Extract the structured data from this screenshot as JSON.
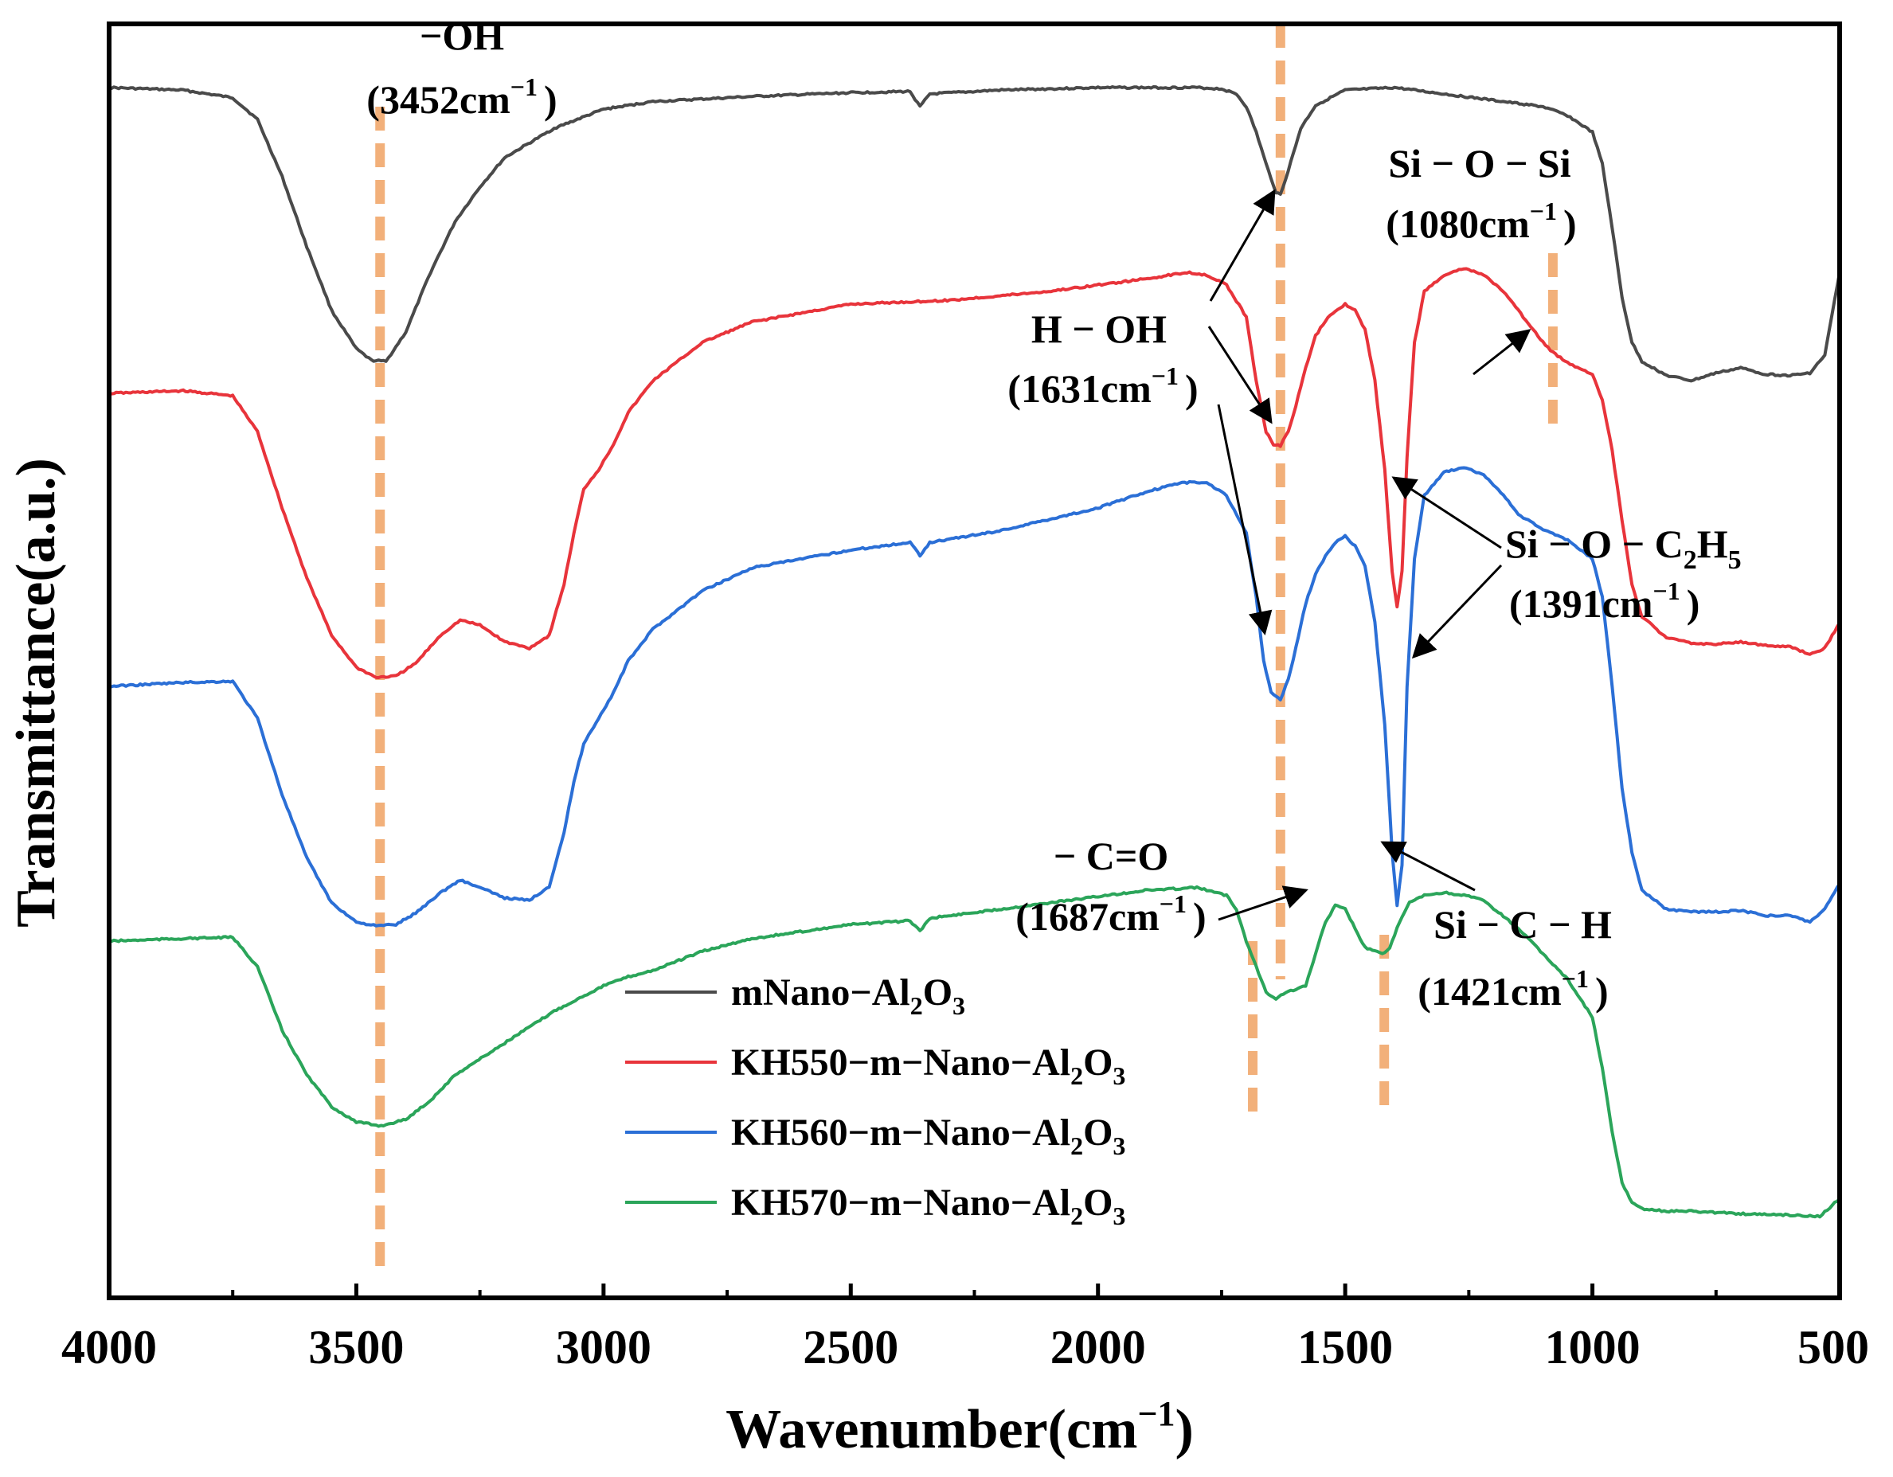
{
  "chart_data": {
    "type": "line",
    "xlabel": "Wavenumber(cm",
    "xlabel_sup": "−1",
    "xlabel_close": ")",
    "ylabel": "Transmittance(a.u.)",
    "xlim": [
      4000,
      500
    ],
    "x_reversed": true,
    "xticks": [
      4000,
      3500,
      3000,
      2500,
      2000,
      1500,
      1000,
      500
    ],
    "xtick_labels": [
      "4000",
      "3500",
      "3000",
      "2500",
      "2000",
      "1500",
      "1000",
      "500"
    ],
    "ylim": [
      0,
      100
    ],
    "grid": false,
    "legend_position": "lower-left",
    "series": [
      {
        "name": "mNano−Al2O3",
        "legend": {
          "main": "mNano−Al",
          "sub1": "2",
          "mid": "O",
          "sub2": "3"
        },
        "color": "#4a4a4a",
        "points": [
          [
            4000,
            95
          ],
          [
            3850,
            94.8
          ],
          [
            3750,
            94.2
          ],
          [
            3700,
            92.5
          ],
          [
            3650,
            88
          ],
          [
            3600,
            82.5
          ],
          [
            3550,
            77.5
          ],
          [
            3500,
            74.5
          ],
          [
            3470,
            73.6
          ],
          [
            3440,
            73.5
          ],
          [
            3400,
            75.8
          ],
          [
            3350,
            80.5
          ],
          [
            3300,
            84.5
          ],
          [
            3250,
            87.2
          ],
          [
            3200,
            89.5
          ],
          [
            3100,
            91.8
          ],
          [
            3000,
            93.3
          ],
          [
            2900,
            93.9
          ],
          [
            2700,
            94.3
          ],
          [
            2500,
            94.6
          ],
          [
            2380,
            94.7
          ],
          [
            2360,
            93.5
          ],
          [
            2340,
            94.5
          ],
          [
            2200,
            94.8
          ],
          [
            2000,
            95
          ],
          [
            1800,
            95
          ],
          [
            1750,
            94.9
          ],
          [
            1720,
            94.5
          ],
          [
            1700,
            93.5
          ],
          [
            1680,
            91.5
          ],
          [
            1660,
            89
          ],
          [
            1640,
            86.8
          ],
          [
            1631,
            86.6
          ],
          [
            1615,
            88.5
          ],
          [
            1590,
            91.8
          ],
          [
            1560,
            93.6
          ],
          [
            1500,
            94.8
          ],
          [
            1400,
            95
          ],
          [
            1300,
            94.5
          ],
          [
            1200,
            94
          ],
          [
            1100,
            93.5
          ],
          [
            1050,
            92.8
          ],
          [
            1000,
            91.5
          ],
          [
            980,
            89
          ],
          [
            960,
            84
          ],
          [
            940,
            78.5
          ],
          [
            920,
            75
          ],
          [
            900,
            73.5
          ],
          [
            850,
            72.4
          ],
          [
            800,
            72
          ],
          [
            750,
            72.6
          ],
          [
            700,
            73
          ],
          [
            650,
            72.5
          ],
          [
            600,
            72.4
          ],
          [
            560,
            72.6
          ],
          [
            530,
            74
          ],
          [
            500,
            80.5
          ]
        ]
      },
      {
        "name": "KH550−m−Nano−Al2O3",
        "legend": {
          "main": "KH550−m−Nano−Al",
          "sub1": "2",
          "mid": "O",
          "sub2": "3"
        },
        "color": "#e8343b",
        "points": [
          [
            4000,
            71
          ],
          [
            3850,
            71.2
          ],
          [
            3750,
            70.8
          ],
          [
            3700,
            68
          ],
          [
            3650,
            62
          ],
          [
            3600,
            56.5
          ],
          [
            3550,
            52
          ],
          [
            3500,
            49.5
          ],
          [
            3460,
            48.7
          ],
          [
            3420,
            48.8
          ],
          [
            3380,
            49.8
          ],
          [
            3330,
            52
          ],
          [
            3290,
            53.2
          ],
          [
            3250,
            52.8
          ],
          [
            3200,
            51.5
          ],
          [
            3150,
            51
          ],
          [
            3110,
            52
          ],
          [
            3080,
            56
          ],
          [
            3060,
            60
          ],
          [
            3040,
            63.5
          ],
          [
            3010,
            65
          ],
          [
            2980,
            67
          ],
          [
            2950,
            69.5
          ],
          [
            2900,
            72
          ],
          [
            2800,
            75
          ],
          [
            2700,
            76.6
          ],
          [
            2500,
            78
          ],
          [
            2300,
            78.3
          ],
          [
            2100,
            79
          ],
          [
            1900,
            80
          ],
          [
            1820,
            80.5
          ],
          [
            1780,
            80.3
          ],
          [
            1740,
            79.5
          ],
          [
            1700,
            77
          ],
          [
            1680,
            72
          ],
          [
            1660,
            68
          ],
          [
            1645,
            67
          ],
          [
            1631,
            66.9
          ],
          [
            1615,
            68
          ],
          [
            1600,
            70
          ],
          [
            1580,
            73
          ],
          [
            1560,
            75.5
          ],
          [
            1540,
            76.7
          ],
          [
            1520,
            77.5
          ],
          [
            1500,
            78
          ],
          [
            1480,
            77.5
          ],
          [
            1460,
            76
          ],
          [
            1440,
            72
          ],
          [
            1420,
            65
          ],
          [
            1405,
            57
          ],
          [
            1395,
            54.2
          ],
          [
            1385,
            57
          ],
          [
            1375,
            66
          ],
          [
            1360,
            75
          ],
          [
            1340,
            79
          ],
          [
            1300,
            80.3
          ],
          [
            1260,
            80.8
          ],
          [
            1220,
            80.3
          ],
          [
            1180,
            79
          ],
          [
            1150,
            77.5
          ],
          [
            1120,
            76
          ],
          [
            1100,
            75
          ],
          [
            1080,
            74.2
          ],
          [
            1050,
            73.4
          ],
          [
            1000,
            72.5
          ],
          [
            980,
            70.5
          ],
          [
            960,
            66.5
          ],
          [
            940,
            61
          ],
          [
            920,
            56
          ],
          [
            900,
            53.5
          ],
          [
            850,
            51.8
          ],
          [
            800,
            51.4
          ],
          [
            750,
            51.3
          ],
          [
            700,
            51.5
          ],
          [
            650,
            51.2
          ],
          [
            600,
            51.1
          ],
          [
            560,
            50.5
          ],
          [
            530,
            51
          ],
          [
            500,
            53
          ]
        ]
      },
      {
        "name": "KH560−m−Nano−Al2O3",
        "legend": {
          "main": "KH560−m−Nano−Al",
          "sub1": "2",
          "mid": "O",
          "sub2": "3"
        },
        "color": "#2b6fd6",
        "points": [
          [
            4000,
            48
          ],
          [
            3850,
            48.3
          ],
          [
            3750,
            48.4
          ],
          [
            3700,
            45.5
          ],
          [
            3650,
            39.5
          ],
          [
            3600,
            34.5
          ],
          [
            3550,
            31
          ],
          [
            3500,
            29.5
          ],
          [
            3460,
            29.2
          ],
          [
            3420,
            29.3
          ],
          [
            3380,
            30.2
          ],
          [
            3330,
            31.8
          ],
          [
            3290,
            32.8
          ],
          [
            3250,
            32.2
          ],
          [
            3200,
            31.4
          ],
          [
            3150,
            31.2
          ],
          [
            3110,
            32.3
          ],
          [
            3080,
            36.5
          ],
          [
            3060,
            40.5
          ],
          [
            3040,
            43.5
          ],
          [
            3010,
            45.5
          ],
          [
            2980,
            47.5
          ],
          [
            2950,
            50
          ],
          [
            2900,
            52.5
          ],
          [
            2800,
            55.5
          ],
          [
            2700,
            57.3
          ],
          [
            2500,
            58.7
          ],
          [
            2380,
            59.3
          ],
          [
            2360,
            58.3
          ],
          [
            2340,
            59.3
          ],
          [
            2200,
            60.2
          ],
          [
            2000,
            62
          ],
          [
            1900,
            63.3
          ],
          [
            1830,
            64
          ],
          [
            1780,
            64
          ],
          [
            1740,
            63
          ],
          [
            1700,
            60
          ],
          [
            1680,
            55
          ],
          [
            1665,
            50
          ],
          [
            1650,
            47.5
          ],
          [
            1631,
            47
          ],
          [
            1615,
            48.5
          ],
          [
            1600,
            51
          ],
          [
            1580,
            54.5
          ],
          [
            1560,
            56.8
          ],
          [
            1540,
            58.2
          ],
          [
            1520,
            59.3
          ],
          [
            1500,
            59.8
          ],
          [
            1480,
            59
          ],
          [
            1460,
            57.5
          ],
          [
            1440,
            53
          ],
          [
            1420,
            45
          ],
          [
            1405,
            35
          ],
          [
            1395,
            30.8
          ],
          [
            1385,
            34
          ],
          [
            1375,
            48
          ],
          [
            1360,
            58
          ],
          [
            1340,
            63
          ],
          [
            1300,
            64.8
          ],
          [
            1260,
            65.2
          ],
          [
            1220,
            64.6
          ],
          [
            1180,
            63
          ],
          [
            1150,
            61.5
          ],
          [
            1100,
            60.3
          ],
          [
            1050,
            59.5
          ],
          [
            1000,
            58
          ],
          [
            980,
            55
          ],
          [
            960,
            48
          ],
          [
            940,
            40
          ],
          [
            920,
            35
          ],
          [
            900,
            32
          ],
          [
            850,
            30.5
          ],
          [
            800,
            30.3
          ],
          [
            750,
            30.3
          ],
          [
            700,
            30.4
          ],
          [
            650,
            30
          ],
          [
            600,
            30
          ],
          [
            560,
            29.5
          ],
          [
            530,
            30.5
          ],
          [
            500,
            32.5
          ]
        ]
      },
      {
        "name": "KH570−m−Nano−Al2O3",
        "legend": {
          "main": "KH570−m−Nano−Al",
          "sub1": "2",
          "mid": "O",
          "sub2": "3"
        },
        "color": "#2ba55a",
        "points": [
          [
            4000,
            28
          ],
          [
            3850,
            28.2
          ],
          [
            3750,
            28.3
          ],
          [
            3700,
            26
          ],
          [
            3650,
            21
          ],
          [
            3600,
            17.5
          ],
          [
            3550,
            15
          ],
          [
            3500,
            13.8
          ],
          [
            3450,
            13.5
          ],
          [
            3400,
            14
          ],
          [
            3350,
            15.5
          ],
          [
            3300,
            17.5
          ],
          [
            3200,
            20
          ],
          [
            3100,
            22.5
          ],
          [
            3000,
            24.5
          ],
          [
            2950,
            25.2
          ],
          [
            2900,
            25.7
          ],
          [
            2800,
            27.2
          ],
          [
            2700,
            28.2
          ],
          [
            2500,
            29.3
          ],
          [
            2380,
            29.6
          ],
          [
            2360,
            28.8
          ],
          [
            2340,
            29.8
          ],
          [
            2200,
            30.5
          ],
          [
            2000,
            31.5
          ],
          [
            1900,
            32
          ],
          [
            1800,
            32.2
          ],
          [
            1740,
            31.6
          ],
          [
            1720,
            30.5
          ],
          [
            1700,
            28
          ],
          [
            1680,
            26
          ],
          [
            1660,
            24
          ],
          [
            1640,
            23.5
          ],
          [
            1620,
            24
          ],
          [
            1600,
            24.2
          ],
          [
            1580,
            24.5
          ],
          [
            1560,
            27
          ],
          [
            1540,
            29.5
          ],
          [
            1520,
            30.8
          ],
          [
            1500,
            30.5
          ],
          [
            1480,
            29
          ],
          [
            1460,
            27.5
          ],
          [
            1440,
            27.2
          ],
          [
            1425,
            27
          ],
          [
            1410,
            27.5
          ],
          [
            1390,
            29.5
          ],
          [
            1370,
            31
          ],
          [
            1340,
            31.6
          ],
          [
            1300,
            31.8
          ],
          [
            1260,
            31.6
          ],
          [
            1220,
            31.2
          ],
          [
            1150,
            29
          ],
          [
            1100,
            27
          ],
          [
            1050,
            25
          ],
          [
            1000,
            22
          ],
          [
            980,
            18
          ],
          [
            960,
            13
          ],
          [
            940,
            9
          ],
          [
            920,
            7.5
          ],
          [
            900,
            7
          ],
          [
            850,
            6.8
          ],
          [
            800,
            6.8
          ],
          [
            700,
            6.6
          ],
          [
            600,
            6.5
          ],
          [
            540,
            6.4
          ],
          [
            500,
            7.8
          ]
        ]
      }
    ],
    "peak_lines": [
      {
        "x": 3452,
        "y_top": 93.5,
        "y_bottom": 1.5
      },
      {
        "x": 1631,
        "y_top": 104,
        "y_bottom": 25
      },
      {
        "x": 1687,
        "y_top": 28,
        "y_bottom": 14.5
      },
      {
        "x": 1421,
        "y_top": 28.5,
        "y_bottom": 15
      },
      {
        "x": 1080,
        "y_top": 82,
        "y_bottom": 68.5
      }
    ],
    "annotations": [
      {
        "label": "−OH",
        "wavenumber": "(3452cm",
        "sup": "−1",
        "close": ")"
      },
      {
        "label": "H − OH",
        "wavenumber": "(1631cm",
        "sup": "−1",
        "close": ")"
      },
      {
        "label": "Si − O − Si",
        "wavenumber": "(1080cm",
        "sup": "−1",
        "close": ")"
      },
      {
        "label": "Si − O − C",
        "label_sub1": "2",
        "label_mid": "H",
        "label_sub2": "5",
        "wavenumber": "(1391cm",
        "sup": "−1",
        "close": ")"
      },
      {
        "label": "− C=O",
        "wavenumber": "(1687cm",
        "sup": "−1",
        "close": ")"
      },
      {
        "label": "Si − C − H",
        "wavenumber": "(1421cm",
        "sup": "−1",
        "close": ")"
      }
    ],
    "colors": {
      "peak_line": "#f2b07a",
      "axis": "#000000",
      "arrow": "#000000"
    }
  }
}
